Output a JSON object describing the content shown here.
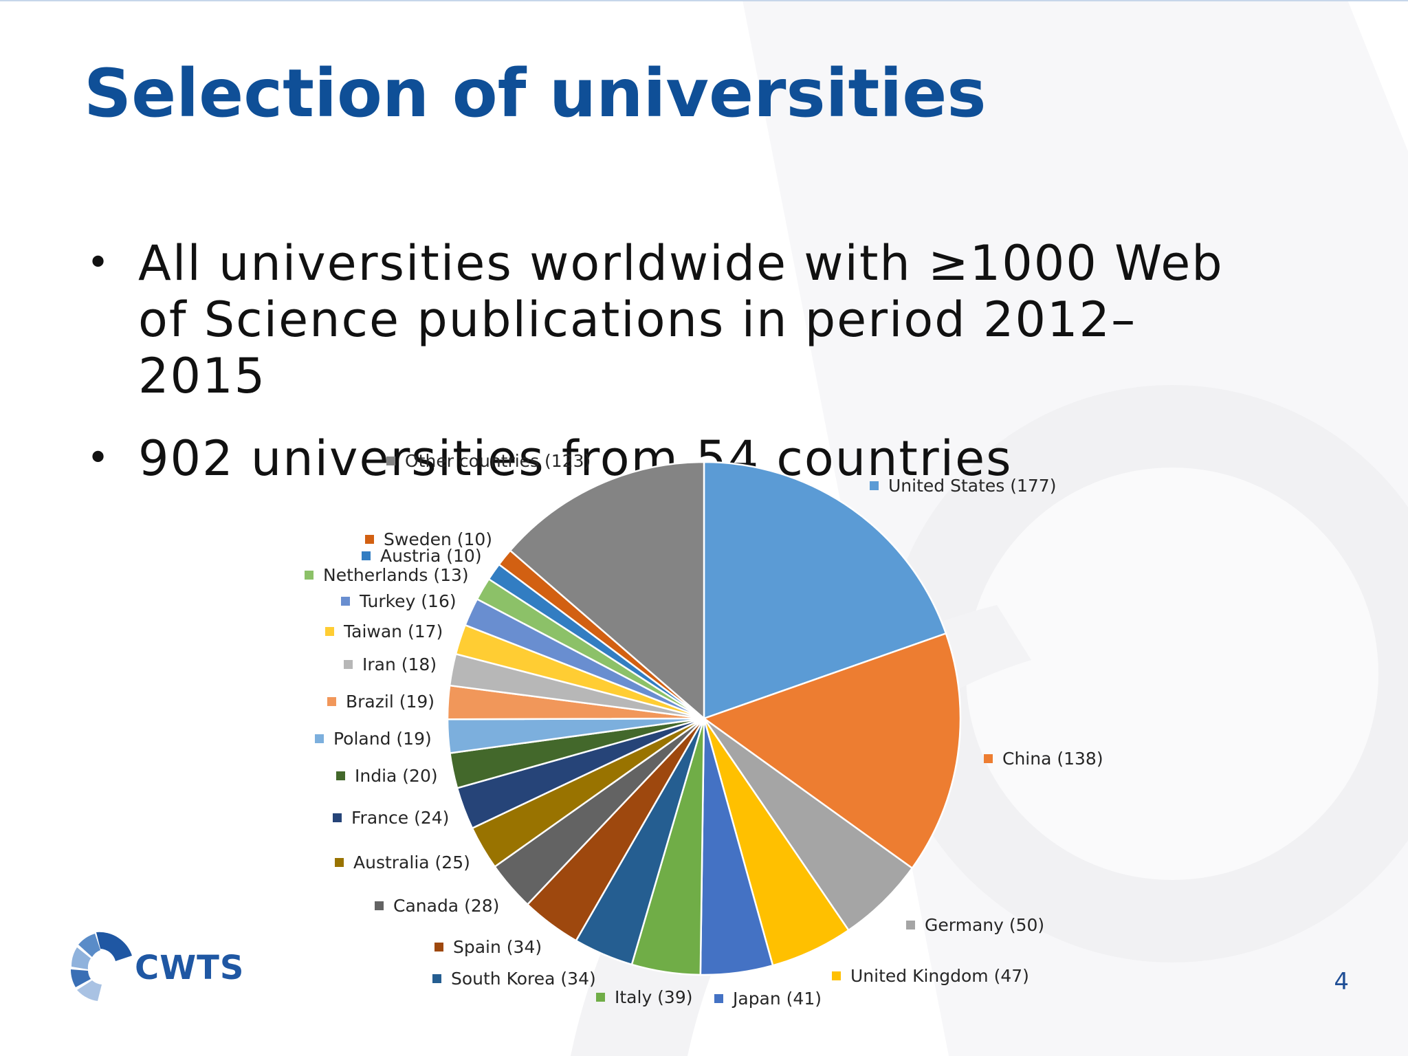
{
  "slide": {
    "title": "Selection of universities",
    "bullets": [
      "All universities worldwide with ≥1000 Web of Science publications in period 2012–2015",
      "902 universities from 54 countries"
    ],
    "bullet_symbol": "•",
    "page_number": "4",
    "logo_text": "CWTS"
  },
  "colors": {
    "title": "#0f4f97",
    "background_shape": "#f1f1f3",
    "logo": "#1f57a3"
  },
  "chart_data": {
    "type": "pie",
    "title": "",
    "unit": "universities",
    "total": 902,
    "slices": [
      {
        "label": "United States",
        "value": 177,
        "legend": "United States (177)",
        "color": "#5b9bd5"
      },
      {
        "label": "China",
        "value": 138,
        "legend": "China (138)",
        "color": "#ed7d31"
      },
      {
        "label": "Germany",
        "value": 50,
        "legend": "Germany (50)",
        "color": "#a5a5a5"
      },
      {
        "label": "United Kingdom",
        "value": 47,
        "legend": "United Kingdom (47)",
        "color": "#ffc000"
      },
      {
        "label": "Japan",
        "value": 41,
        "legend": "Japan (41)",
        "color": "#4472c4"
      },
      {
        "label": "Italy",
        "value": 39,
        "legend": "Italy (39)",
        "color": "#70ad47"
      },
      {
        "label": "South Korea",
        "value": 34,
        "legend": "South Korea (34)",
        "color": "#255e91"
      },
      {
        "label": "Spain",
        "value": 34,
        "legend": "Spain (34)",
        "color": "#9e480e"
      },
      {
        "label": "Canada",
        "value": 28,
        "legend": "Canada (28)",
        "color": "#636363"
      },
      {
        "label": "Australia",
        "value": 25,
        "legend": "Australia (25)",
        "color": "#997300"
      },
      {
        "label": "France",
        "value": 24,
        "legend": "France (24)",
        "color": "#264478"
      },
      {
        "label": "India",
        "value": 20,
        "legend": "India (20)",
        "color": "#43682b"
      },
      {
        "label": "Poland",
        "value": 19,
        "legend": "Poland (19)",
        "color": "#7cafdd"
      },
      {
        "label": "Brazil",
        "value": 19,
        "legend": "Brazil (19)",
        "color": "#f1975a"
      },
      {
        "label": "Iran",
        "value": 18,
        "legend": "Iran (18)",
        "color": "#b7b7b7"
      },
      {
        "label": "Taiwan",
        "value": 17,
        "legend": "Taiwan (17)",
        "color": "#ffcd33"
      },
      {
        "label": "Turkey",
        "value": 16,
        "legend": "Turkey (16)",
        "color": "#698ed0"
      },
      {
        "label": "Netherlands",
        "value": 13,
        "legend": "Netherlands (13)",
        "color": "#8cc168"
      },
      {
        "label": "Austria",
        "value": 10,
        "legend": "Austria (10)",
        "color": "#327dc2"
      },
      {
        "label": "Sweden",
        "value": 10,
        "legend": "Sweden (10)",
        "color": "#d26012"
      },
      {
        "label": "Other countries",
        "value": 123,
        "legend": "Other countries (123)",
        "color": "#848484"
      }
    ]
  }
}
